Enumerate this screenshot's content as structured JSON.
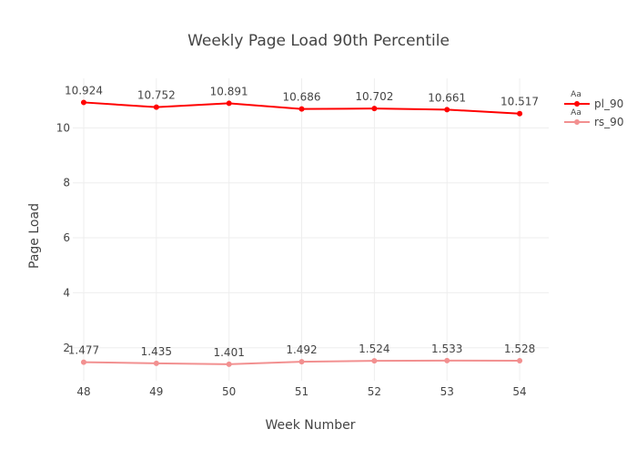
{
  "chart_data": {
    "type": "line",
    "title": "Weekly Page Load 90th Percentile",
    "xlabel": "Week Number",
    "ylabel": "Page Load",
    "x": [
      48,
      49,
      50,
      51,
      52,
      53,
      54
    ],
    "xlim": [
      47.85,
      54.4
    ],
    "ylim": [
      0.8,
      11.8
    ],
    "y_ticks": [
      2,
      4,
      6,
      8,
      10
    ],
    "grid": true,
    "legend_placement": "top-right",
    "series": [
      {
        "name": "pl_90",
        "color": "#ff0000",
        "values": [
          10.924,
          10.752,
          10.891,
          10.686,
          10.702,
          10.661,
          10.517
        ],
        "labels": [
          "10.924",
          "10.752",
          "10.891",
          "10.686",
          "10.702",
          "10.661",
          "10.517"
        ],
        "legend_marker_text": "Aa"
      },
      {
        "name": "rs_90",
        "color": "#f29090",
        "values": [
          1.477,
          1.435,
          1.401,
          1.492,
          1.524,
          1.533,
          1.528
        ],
        "labels": [
          "1.477",
          "1.435",
          "1.401",
          "1.492",
          "1.524",
          "1.533",
          "1.528"
        ],
        "legend_marker_text": "Aa"
      }
    ]
  }
}
